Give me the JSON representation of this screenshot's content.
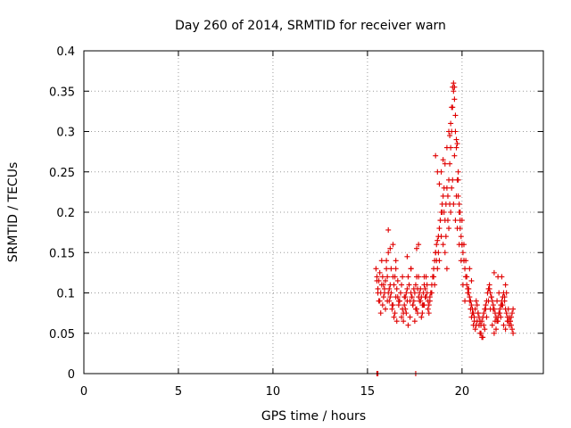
{
  "chart_data": {
    "type": "scatter",
    "title": "Day 260 of 2014, SRMTID for receiver warn",
    "xlabel": "GPS time / hours",
    "ylabel": "SRMTID / TECUs",
    "xlim": [
      0,
      24.3
    ],
    "ylim": [
      0,
      0.4
    ],
    "x_ticks": [
      0,
      5,
      10,
      15,
      20
    ],
    "x_tick_labels": [
      "0",
      "5",
      "10",
      "15",
      "20"
    ],
    "y_ticks": [
      0,
      0.05,
      0.1,
      0.15,
      0.2,
      0.25,
      0.3,
      0.35,
      0.4
    ],
    "y_tick_labels": [
      "0",
      "0.05",
      "0.1",
      "0.15",
      "0.2",
      "0.25",
      "0.3",
      "0.35",
      "0.4"
    ],
    "grid": true,
    "marker": "plus",
    "series": [
      {
        "name": "SRMTID",
        "color": "#e00000",
        "x": [
          15.5,
          15.5,
          15.55,
          17.55,
          15.45,
          15.5,
          15.55,
          15.6,
          15.65,
          15.7,
          15.75,
          15.8,
          15.85,
          15.9,
          15.95,
          16.0,
          16.05,
          16.1,
          16.15,
          16.2,
          16.25,
          16.3,
          16.35,
          16.4,
          16.45,
          16.5,
          16.55,
          16.6,
          16.65,
          16.7,
          16.75,
          16.8,
          16.85,
          16.9,
          16.95,
          17.0,
          17.05,
          17.1,
          17.15,
          17.2,
          17.25,
          17.3,
          17.35,
          17.4,
          17.45,
          17.5,
          17.55,
          17.6,
          17.65,
          17.7,
          17.75,
          17.8,
          17.85,
          17.9,
          17.95,
          18.0,
          18.05,
          18.1,
          18.15,
          18.2,
          18.25,
          18.3,
          18.35,
          18.4,
          18.45,
          18.5,
          18.55,
          18.6,
          18.65,
          18.7,
          18.75,
          18.8,
          18.85,
          18.9,
          18.95,
          19.0,
          19.05,
          19.1,
          19.15,
          19.2,
          19.25,
          19.3,
          19.35,
          19.4,
          19.45,
          19.5,
          19.55,
          19.6,
          19.65,
          19.7,
          19.75,
          19.8,
          19.85,
          19.9,
          19.95,
          20.0,
          20.05,
          20.1,
          20.15,
          20.2,
          20.25,
          20.3,
          20.35,
          20.4,
          20.45,
          20.5,
          20.55,
          20.6,
          20.65,
          20.7,
          20.75,
          20.8,
          20.85,
          20.9,
          20.95,
          21.0,
          21.05,
          21.1,
          21.15,
          21.2,
          21.25,
          21.3,
          21.35,
          21.4,
          21.45,
          21.5,
          21.55,
          21.6,
          21.65,
          21.7,
          21.75,
          21.8,
          21.85,
          21.9,
          21.95,
          22.0,
          22.05,
          22.1,
          22.15,
          22.2,
          22.25,
          22.3,
          22.35,
          22.4,
          22.45,
          22.5,
          22.55,
          22.6,
          22.65,
          22.7,
          15.5,
          15.6,
          15.7,
          15.8,
          15.9,
          16.0,
          16.1,
          16.2,
          16.3,
          16.4,
          16.5,
          16.6,
          16.7,
          16.8,
          16.9,
          17.0,
          17.1,
          17.2,
          17.3,
          17.4,
          17.5,
          17.6,
          17.7,
          17.8,
          17.9,
          18.0,
          18.1,
          18.2,
          18.3,
          18.4,
          18.5,
          18.6,
          18.7,
          18.8,
          18.9,
          19.0,
          19.1,
          19.2,
          19.3,
          19.4,
          19.5,
          19.6,
          19.7,
          19.8,
          19.9,
          20.0,
          20.1,
          20.2,
          20.3,
          20.4,
          20.5,
          20.6,
          20.7,
          20.8,
          20.9,
          21.0,
          21.1,
          21.2,
          21.3,
          21.4,
          21.5,
          21.6,
          21.7,
          21.8,
          21.9,
          22.0,
          22.1,
          22.2,
          22.3,
          22.4,
          22.5,
          22.6,
          22.7,
          15.55,
          15.65,
          15.75,
          15.85,
          15.95,
          16.05,
          16.15,
          16.25,
          16.35,
          16.45,
          16.55,
          16.65,
          16.75,
          16.85,
          16.95,
          17.05,
          17.15,
          17.25,
          17.35,
          17.45,
          17.55,
          17.65,
          17.75,
          17.85,
          17.95,
          18.05,
          18.15,
          18.25,
          18.35,
          18.45,
          18.55,
          18.65,
          18.75,
          18.85,
          18.95,
          19.05,
          19.15,
          19.25,
          19.35,
          19.45,
          19.55,
          19.65,
          19.75,
          19.85,
          19.95,
          20.05,
          20.15,
          20.25,
          20.35,
          20.45,
          20.55,
          20.65,
          20.75,
          20.85,
          20.95,
          21.05,
          21.15,
          21.25,
          21.35,
          21.45,
          21.55,
          21.65,
          21.75,
          21.85,
          21.95,
          22.05,
          22.15,
          22.25,
          22.35,
          22.45,
          22.55,
          22.65,
          16.1,
          16.2,
          16.35,
          16.5,
          17.1,
          17.3,
          17.6,
          17.7,
          18.0,
          18.6,
          18.7,
          18.8,
          18.9,
          19.0,
          19.1,
          19.2,
          19.3,
          19.35,
          19.4,
          19.45,
          19.5,
          19.55,
          19.6,
          19.65,
          19.7,
          19.75,
          19.8,
          19.85,
          19.9,
          20.0,
          20.1,
          20.2,
          20.4,
          20.5,
          21.7,
          21.9,
          22.1,
          22.3
        ],
        "y": [
          0.0,
          0.0,
          0.0,
          0.0,
          0.13,
          0.12,
          0.105,
          0.115,
          0.09,
          0.1,
          0.11,
          0.12,
          0.095,
          0.105,
          0.115,
          0.13,
          0.12,
          0.1,
          0.09,
          0.095,
          0.1,
          0.08,
          0.085,
          0.11,
          0.12,
          0.13,
          0.105,
          0.095,
          0.085,
          0.09,
          0.1,
          0.11,
          0.08,
          0.075,
          0.085,
          0.095,
          0.1,
          0.105,
          0.12,
          0.11,
          0.09,
          0.1,
          0.095,
          0.085,
          0.09,
          0.1,
          0.11,
          0.12,
          0.105,
          0.095,
          0.1,
          0.09,
          0.095,
          0.085,
          0.1,
          0.11,
          0.105,
          0.095,
          0.1,
          0.09,
          0.085,
          0.095,
          0.1,
          0.11,
          0.12,
          0.13,
          0.14,
          0.15,
          0.16,
          0.165,
          0.17,
          0.18,
          0.19,
          0.2,
          0.21,
          0.22,
          0.2,
          0.19,
          0.21,
          0.23,
          0.22,
          0.24,
          0.26,
          0.28,
          0.3,
          0.33,
          0.35,
          0.34,
          0.3,
          0.28,
          0.24,
          0.22,
          0.2,
          0.18,
          0.17,
          0.16,
          0.15,
          0.14,
          0.13,
          0.12,
          0.11,
          0.105,
          0.1,
          0.095,
          0.09,
          0.085,
          0.08,
          0.075,
          0.07,
          0.08,
          0.09,
          0.085,
          0.075,
          0.07,
          0.065,
          0.06,
          0.065,
          0.07,
          0.075,
          0.08,
          0.085,
          0.09,
          0.1,
          0.105,
          0.11,
          0.1,
          0.095,
          0.09,
          0.085,
          0.08,
          0.075,
          0.07,
          0.065,
          0.07,
          0.075,
          0.08,
          0.085,
          0.09,
          0.095,
          0.1,
          0.09,
          0.08,
          0.075,
          0.07,
          0.065,
          0.06,
          0.065,
          0.07,
          0.075,
          0.08,
          0.115,
          0.09,
          0.075,
          0.085,
          0.1,
          0.14,
          0.15,
          0.11,
          0.085,
          0.07,
          0.095,
          0.115,
          0.09,
          0.07,
          0.065,
          0.08,
          0.09,
          0.11,
          0.13,
          0.085,
          0.065,
          0.08,
          0.12,
          0.105,
          0.075,
          0.085,
          0.12,
          0.08,
          0.09,
          0.1,
          0.12,
          0.15,
          0.13,
          0.14,
          0.17,
          0.16,
          0.15,
          0.13,
          0.18,
          0.2,
          0.24,
          0.27,
          0.22,
          0.25,
          0.2,
          0.16,
          0.14,
          0.12,
          0.1,
          0.09,
          0.07,
          0.06,
          0.055,
          0.065,
          0.06,
          0.05,
          0.045,
          0.055,
          0.07,
          0.09,
          0.08,
          0.06,
          0.05,
          0.055,
          0.065,
          0.075,
          0.085,
          0.06,
          0.055,
          0.065,
          0.07,
          0.06,
          0.05,
          0.1,
          0.125,
          0.14,
          0.11,
          0.08,
          0.09,
          0.105,
          0.13,
          0.12,
          0.075,
          0.065,
          0.09,
          0.1,
          0.12,
          0.095,
          0.075,
          0.06,
          0.07,
          0.095,
          0.105,
          0.08,
          0.075,
          0.09,
          0.07,
          0.085,
          0.095,
          0.11,
          0.075,
          0.1,
          0.12,
          0.11,
          0.14,
          0.15,
          0.19,
          0.2,
          0.23,
          0.17,
          0.19,
          0.21,
          0.23,
          0.21,
          0.19,
          0.18,
          0.16,
          0.14,
          0.11,
          0.09,
          0.12,
          0.105,
          0.08,
          0.075,
          0.065,
          0.06,
          0.075,
          0.05,
          0.045,
          0.06,
          0.08,
          0.1,
          0.105,
          0.095,
          0.08,
          0.065,
          0.09,
          0.1,
          0.07,
          0.085,
          0.095,
          0.1,
          0.08,
          0.065,
          0.055,
          0.178,
          0.155,
          0.16,
          0.14,
          0.145,
          0.13,
          0.155,
          0.16,
          0.12,
          0.27,
          0.25,
          0.235,
          0.25,
          0.265,
          0.26,
          0.28,
          0.3,
          0.295,
          0.31,
          0.33,
          0.355,
          0.36,
          0.355,
          0.32,
          0.29,
          0.285,
          0.24,
          0.21,
          0.19,
          0.19,
          0.16,
          0.14,
          0.13,
          0.115,
          0.125,
          0.12,
          0.12,
          0.11
        ]
      }
    ]
  }
}
